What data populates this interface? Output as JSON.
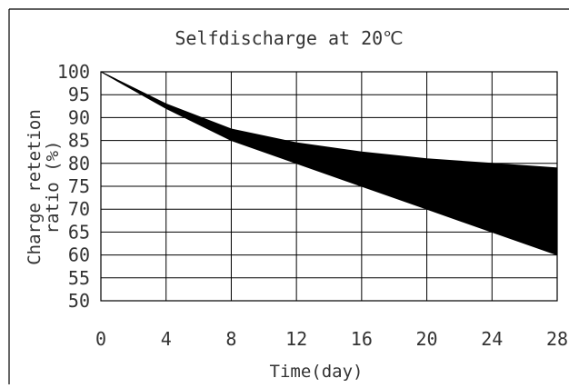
{
  "chart_data": {
    "type": "area",
    "title": "Selfdischarge at 20℃",
    "xlabel": "Time(day)",
    "ylabel_line1": "Charge retetion",
    "ylabel_line2": "ratio (%)",
    "xlim": [
      0,
      28
    ],
    "ylim": [
      50,
      100
    ],
    "xticks": [
      0,
      4,
      8,
      12,
      16,
      20,
      24,
      28
    ],
    "yticks": [
      50,
      55,
      60,
      65,
      70,
      75,
      80,
      85,
      90,
      95,
      100
    ],
    "grid": true,
    "x": [
      0,
      4,
      8,
      12,
      16,
      20,
      24,
      28
    ],
    "series": [
      {
        "values": [
          100,
          93,
          87.5,
          84.5,
          82.5,
          81,
          80,
          79
        ]
      },
      {
        "values": [
          100,
          92,
          85,
          80,
          75,
          70,
          65,
          60
        ]
      }
    ],
    "fill_color": "#000000",
    "grid_color": "#000000"
  }
}
